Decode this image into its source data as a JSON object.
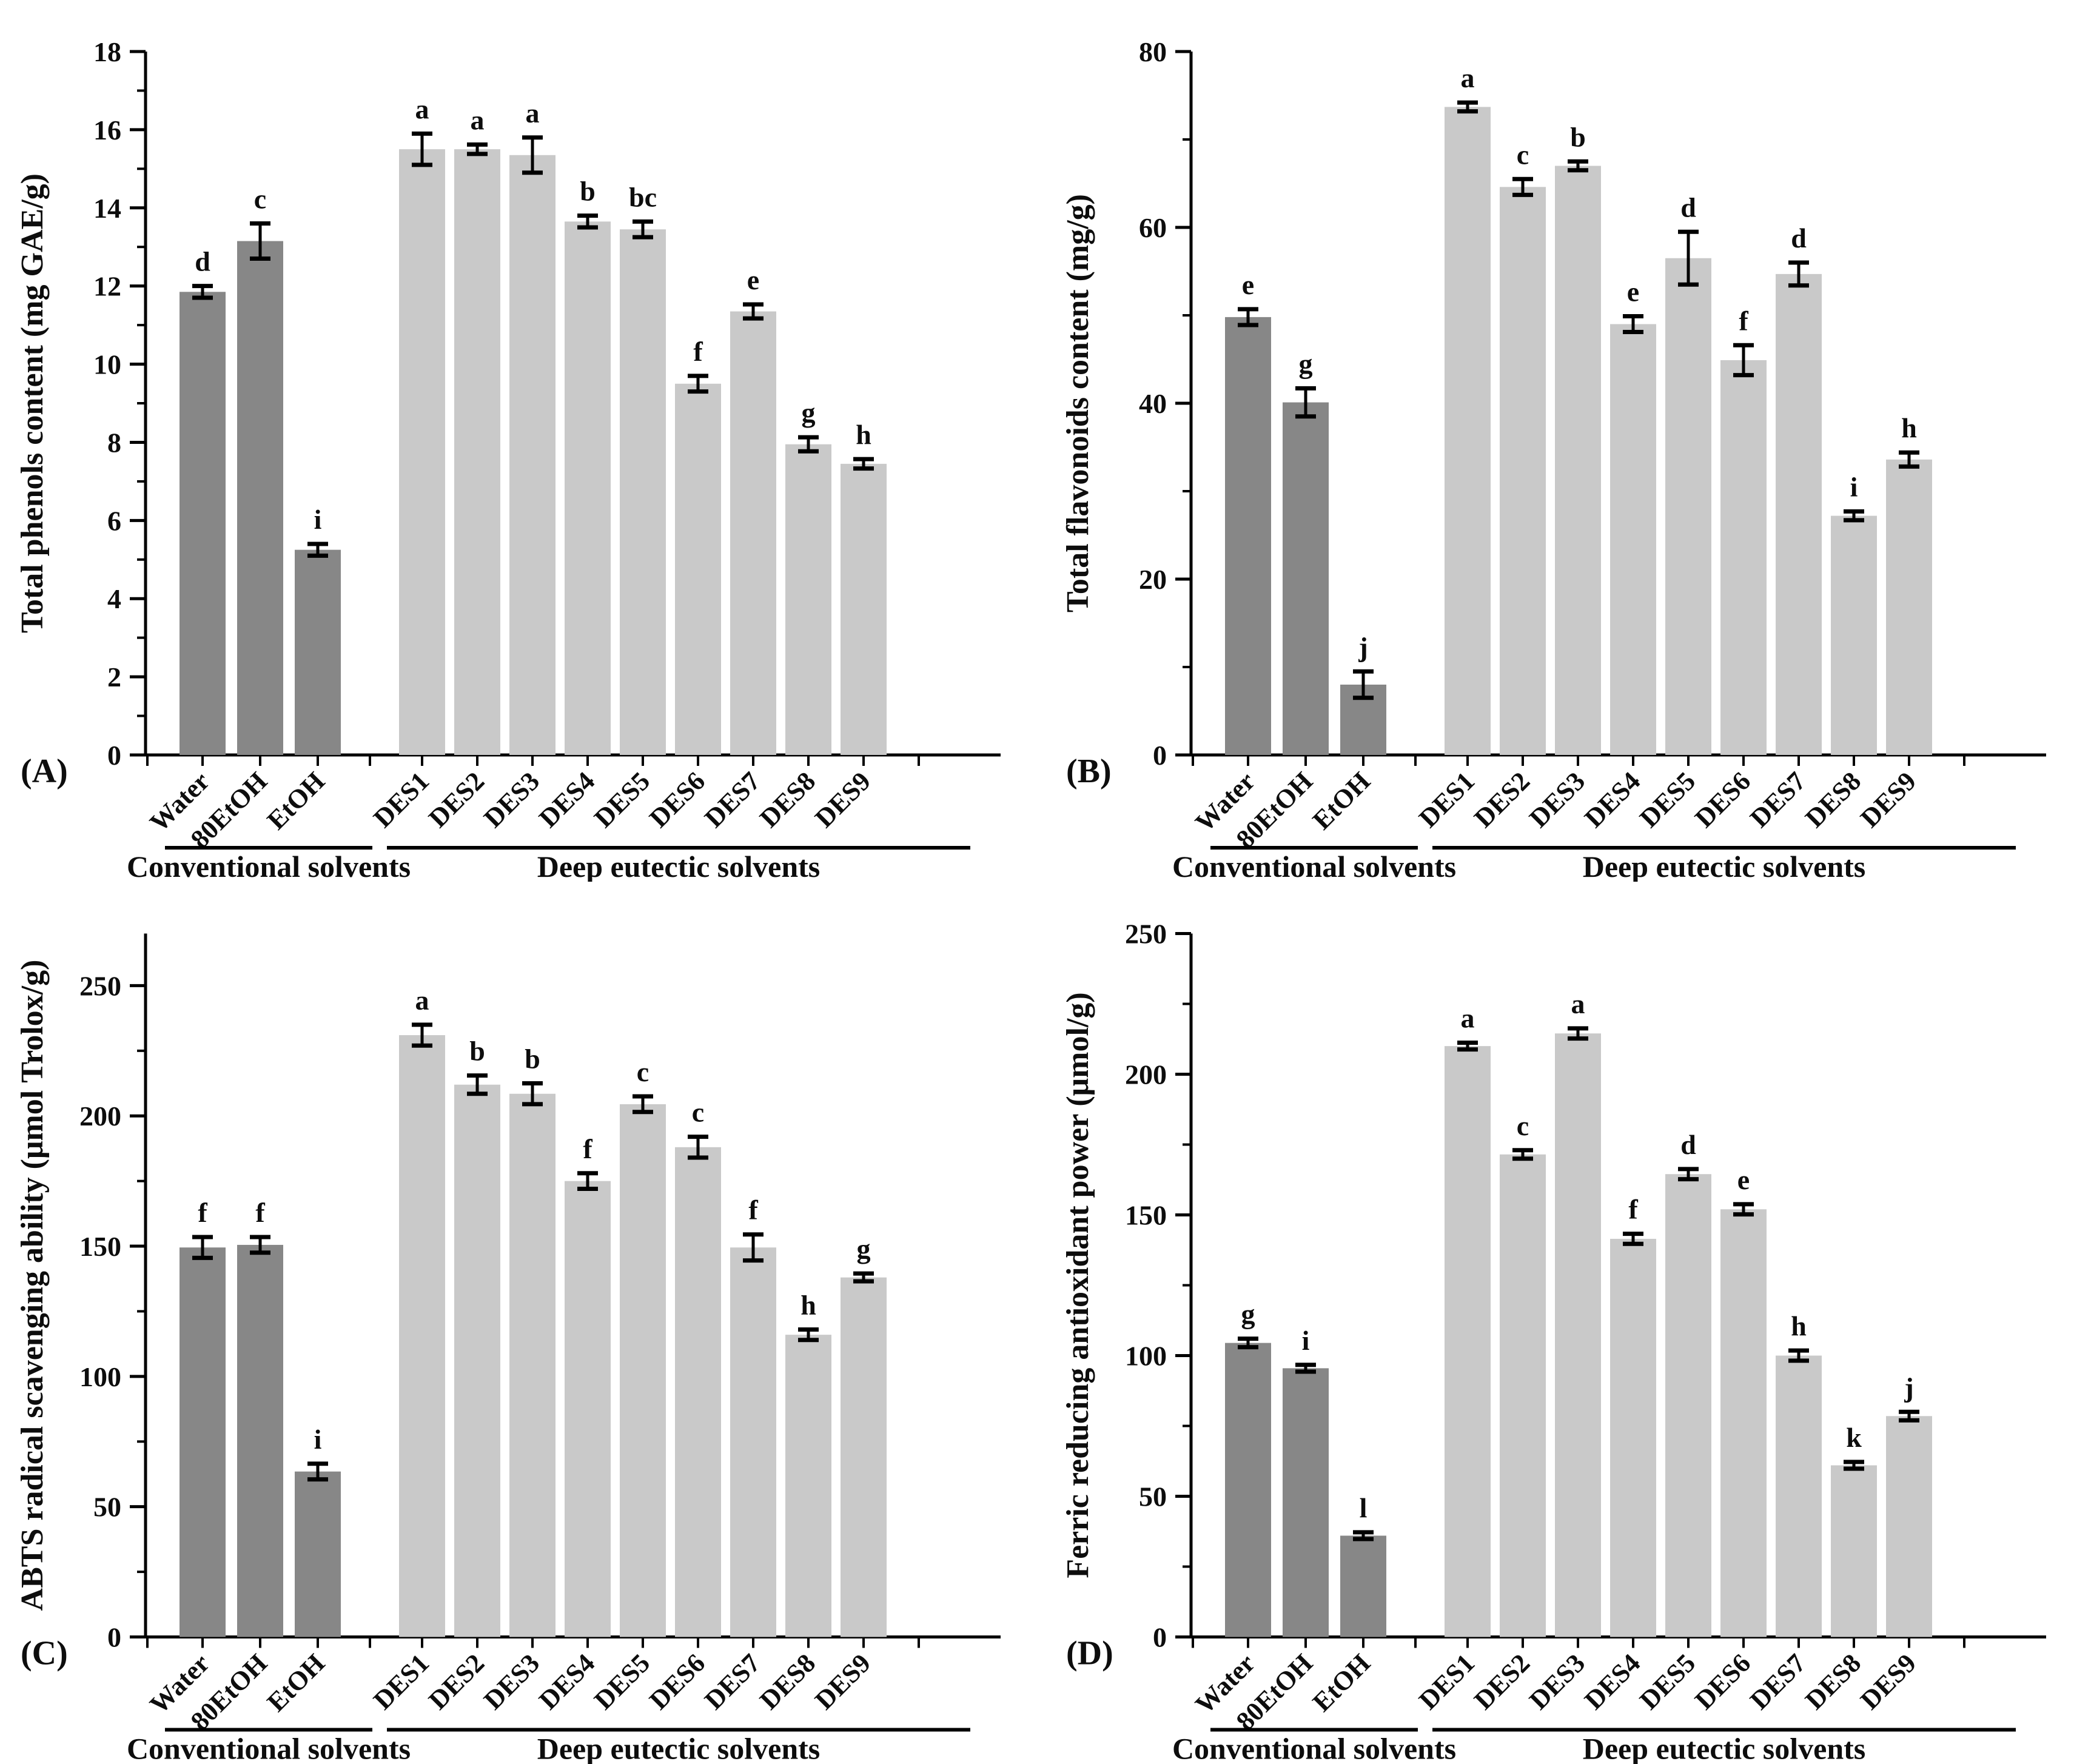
{
  "figure": {
    "background": "#ffffff",
    "style": {
      "conventional_bar_color": "#878787",
      "des_bar_color": "#c9c9c9",
      "axis_color": "#000000",
      "text_color": "#0d0d0d"
    }
  },
  "chart_data": [
    {
      "type": "bar",
      "panel_label": "(A)",
      "title": "",
      "xlabel": "",
      "ylabel": "Total phenols content (mg GAE/g)",
      "ylim": [
        0,
        18
      ],
      "yticks": [
        0,
        2,
        4,
        6,
        8,
        10,
        12,
        14,
        16,
        18
      ],
      "minor_tick_step": 1,
      "grid": false,
      "legend": "none",
      "categories": [
        "Water",
        "80EtOH",
        "EtOH",
        "DES1",
        "DES2",
        "DES3",
        "DES4",
        "DES5",
        "DES6",
        "DES7",
        "DES8",
        "DES9"
      ],
      "values": [
        11.85,
        13.15,
        5.25,
        15.5,
        15.5,
        15.35,
        13.65,
        13.45,
        9.5,
        11.35,
        7.95,
        7.45
      ],
      "errors": [
        0.15,
        0.45,
        0.15,
        0.4,
        0.12,
        0.45,
        0.15,
        0.2,
        0.2,
        0.18,
        0.18,
        0.12
      ],
      "sig_letters": [
        "d",
        "c",
        "i",
        "a",
        "a",
        "a",
        "b",
        "bc",
        "f",
        "e",
        "g",
        "h"
      ],
      "group_labels": [
        "Conventional solvents",
        "Deep eutectic solvents"
      ],
      "group_ranges": [
        [
          0,
          2
        ],
        [
          3,
          11
        ]
      ]
    },
    {
      "type": "bar",
      "panel_label": "(B)",
      "title": "",
      "xlabel": "",
      "ylabel": "Total flavonoids content (mg/g)",
      "ylim": [
        0,
        80
      ],
      "yticks": [
        0,
        20,
        40,
        60,
        80
      ],
      "minor_tick_step": 10,
      "grid": false,
      "legend": "none",
      "categories": [
        "Water",
        "80EtOH",
        "EtOH",
        "DES1",
        "DES2",
        "DES3",
        "DES4",
        "DES5",
        "DES6",
        "DES7",
        "DES8",
        "DES9"
      ],
      "values": [
        49.8,
        40.1,
        8.0,
        73.7,
        64.6,
        67.0,
        49.0,
        56.5,
        44.9,
        54.7,
        27.2,
        33.6
      ],
      "errors": [
        0.9,
        1.6,
        1.5,
        0.5,
        0.9,
        0.5,
        0.9,
        3.0,
        1.7,
        1.3,
        0.5,
        0.8
      ],
      "sig_letters": [
        "e",
        "g",
        "j",
        "a",
        "c",
        "b",
        "e",
        "d",
        "f",
        "d",
        "i",
        "h"
      ],
      "group_labels": [
        "Conventional solvents",
        "Deep eutectic solvents"
      ],
      "group_ranges": [
        [
          0,
          2
        ],
        [
          3,
          11
        ]
      ]
    },
    {
      "type": "bar",
      "panel_label": "(C)",
      "title": "",
      "xlabel": "",
      "ylabel": "ABTS radical scavenging ability (μmol Trolox/g)",
      "ylim": [
        0,
        270
      ],
      "yticks": [
        0,
        50,
        100,
        150,
        200,
        250
      ],
      "minor_tick_step": 25,
      "grid": false,
      "legend": "none",
      "categories": [
        "Water",
        "80EtOH",
        "EtOH",
        "DES1",
        "DES2",
        "DES3",
        "DES4",
        "DES5",
        "DES6",
        "DES7",
        "DES8",
        "DES9"
      ],
      "values": [
        149.5,
        150.5,
        63.5,
        231,
        212,
        208.5,
        175,
        204.5,
        188,
        149.5,
        116,
        138
      ],
      "errors": [
        4,
        3,
        3,
        4,
        3.5,
        4,
        3,
        3,
        4,
        5,
        2,
        1.5
      ],
      "sig_letters": [
        "f",
        "f",
        "i",
        "a",
        "b",
        "b",
        "f",
        "c",
        "c",
        "f",
        "h",
        "g"
      ],
      "group_labels": [
        "Conventional solvents",
        "Deep eutectic solvents"
      ],
      "group_ranges": [
        [
          0,
          2
        ],
        [
          3,
          11
        ]
      ]
    },
    {
      "type": "bar",
      "panel_label": "(D)",
      "title": "",
      "xlabel": "",
      "ylabel": "Ferric reducing antioxidant power (μmol/g)",
      "ylim": [
        0,
        250
      ],
      "yticks": [
        0,
        50,
        100,
        150,
        200,
        250
      ],
      "minor_tick_step": 25,
      "grid": false,
      "legend": "none",
      "categories": [
        "Water",
        "80EtOH",
        "EtOH",
        "DES1",
        "DES2",
        "DES3",
        "DES4",
        "DES5",
        "DES6",
        "DES7",
        "DES8",
        "DES9"
      ],
      "values": [
        104.5,
        95.5,
        36,
        210,
        171.5,
        214.5,
        141.5,
        164.5,
        152,
        100,
        61,
        78.5
      ],
      "errors": [
        1.5,
        1.2,
        1.2,
        1.2,
        1.5,
        1.8,
        1.8,
        1.8,
        1.8,
        1.8,
        1.2,
        1.5
      ],
      "sig_letters": [
        "g",
        "i",
        "l",
        "a",
        "c",
        "a",
        "f",
        "d",
        "e",
        "h",
        "k",
        "j"
      ],
      "group_labels": [
        "Conventional solvents",
        "Deep eutectic solvents"
      ],
      "group_ranges": [
        [
          0,
          2
        ],
        [
          3,
          11
        ]
      ]
    }
  ]
}
